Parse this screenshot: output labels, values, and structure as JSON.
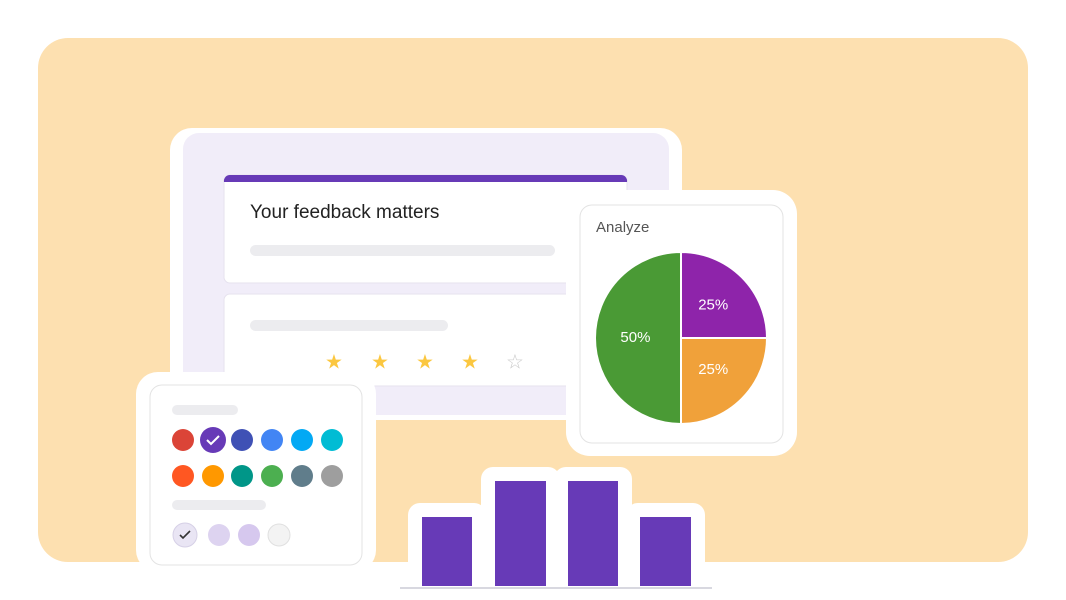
{
  "form": {
    "title": "Your feedback matters"
  },
  "analyze": {
    "title": "Analyze",
    "chart_data": {
      "type": "pie",
      "values": [
        25,
        25,
        50
      ],
      "value_labels": [
        "25%",
        "25%",
        "50%"
      ],
      "colors": [
        "#8e24aa",
        "#f0a13a",
        "#4a9a35"
      ]
    }
  }
}
